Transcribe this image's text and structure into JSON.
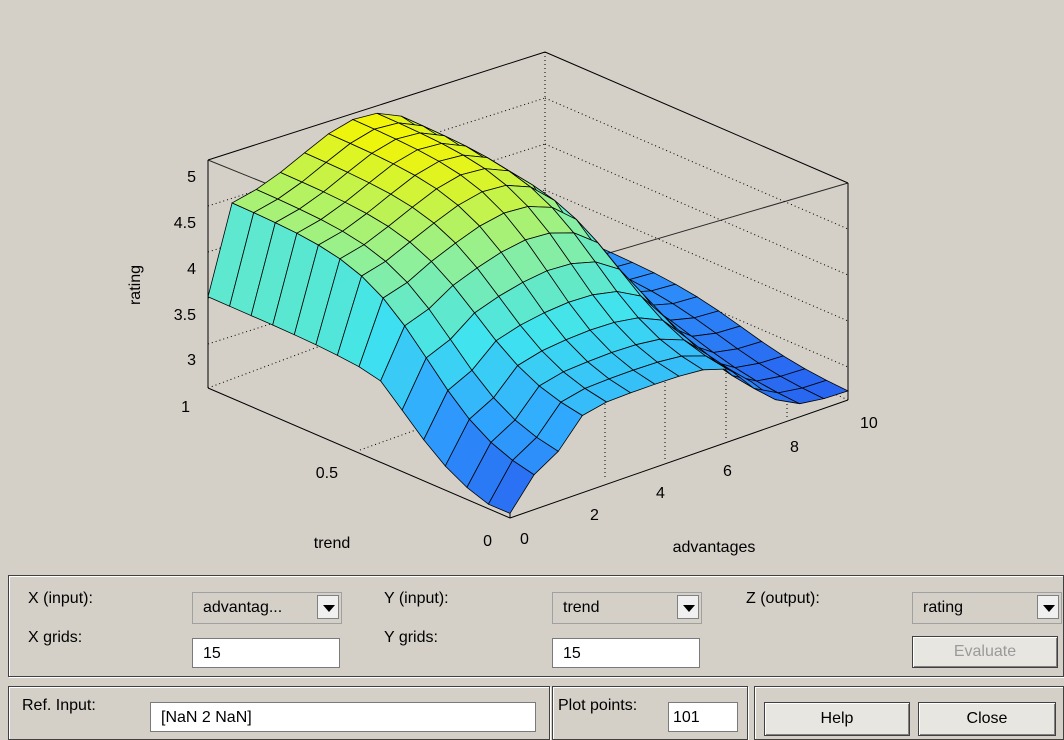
{
  "plot": {
    "z_axis_label": "rating",
    "y_axis_label": "trend",
    "x_axis_label": "advantages",
    "z_ticks": [
      "5",
      "4.5",
      "4",
      "3.5",
      "3"
    ],
    "y_ticks": [
      "1",
      "0.5",
      "0"
    ],
    "x_ticks": [
      "0",
      "2",
      "4",
      "6",
      "8",
      "10"
    ],
    "colormap": [
      "#2864f0",
      "#2fa3ff",
      "#3fe3ef",
      "#8ff09a",
      "#f6f500"
    ]
  },
  "controls": {
    "x_input_label": "X (input):",
    "x_input_value": "advantag...",
    "y_input_label": "Y (input):",
    "y_input_value": "trend",
    "z_output_label": "Z (output):",
    "z_output_value": "rating",
    "x_grids_label": "X grids:",
    "x_grids_value": "15",
    "y_grids_label": "Y grids:",
    "y_grids_value": "15",
    "evaluate_label": "Evaluate",
    "ref_input_label": "Ref. Input:",
    "ref_input_value": "[NaN 2 NaN]",
    "plot_points_label": "Plot points:",
    "plot_points_value": "101",
    "help_label": "Help",
    "close_label": "Close"
  }
}
